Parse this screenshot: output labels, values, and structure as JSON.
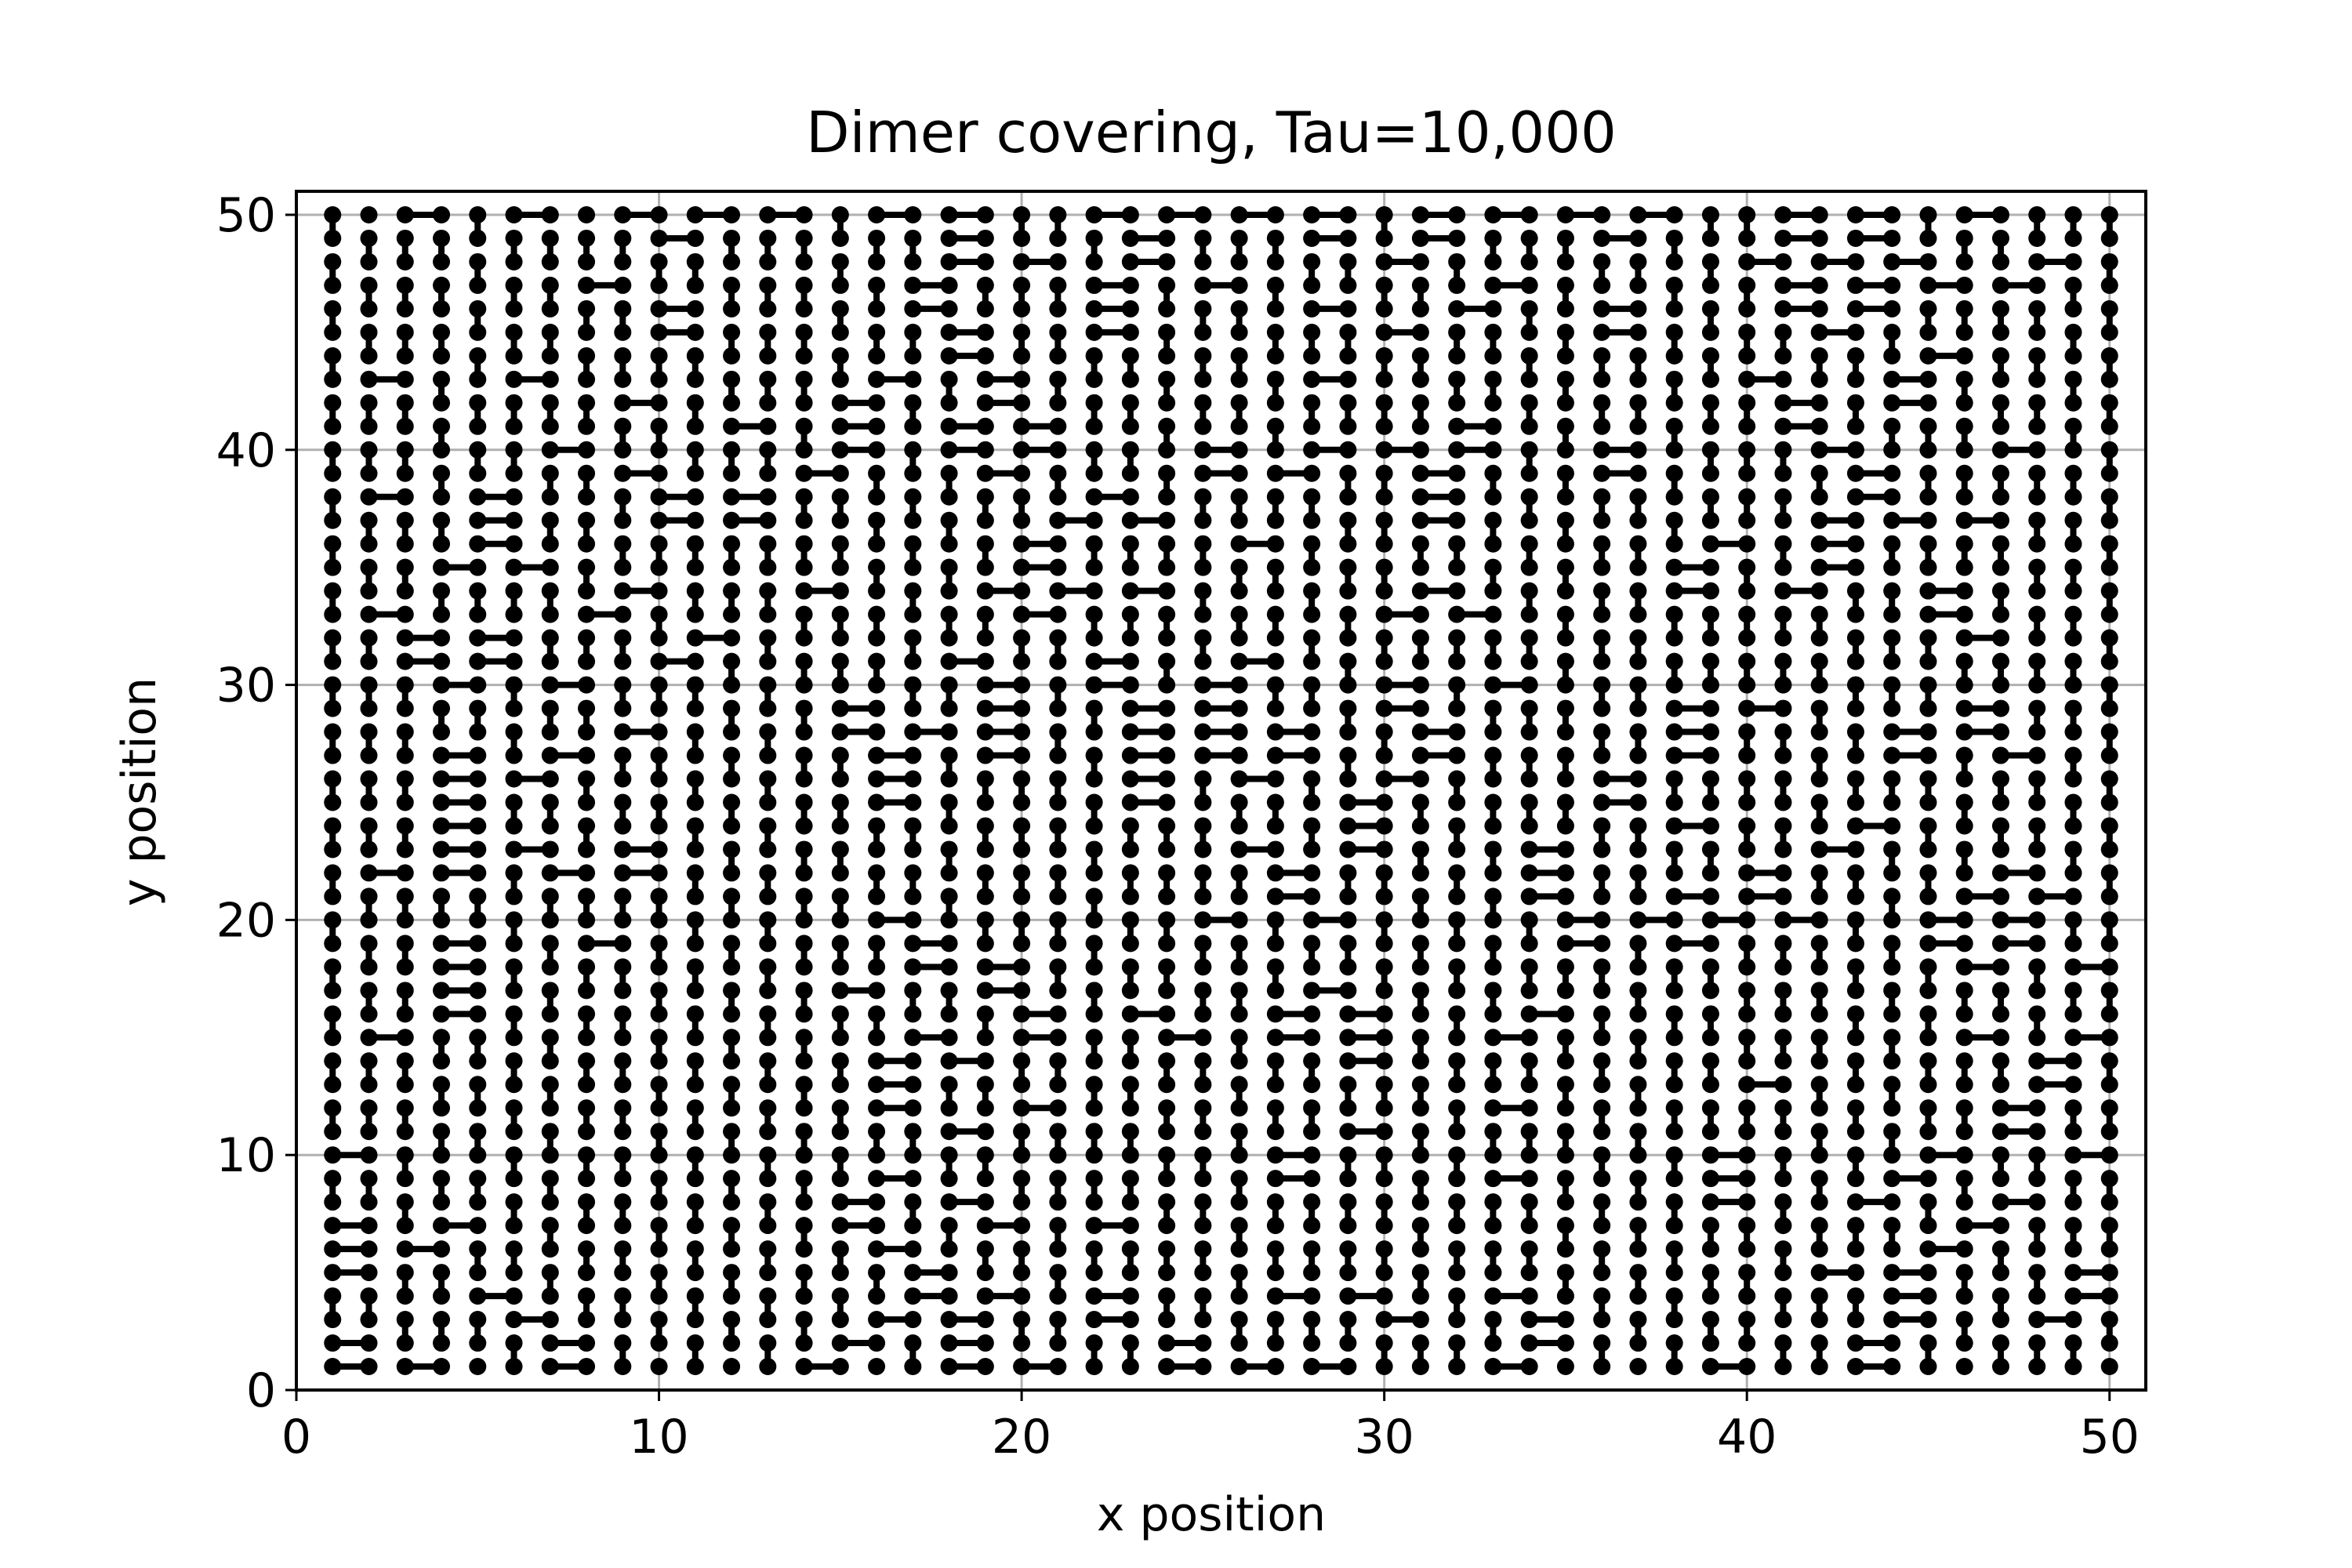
{
  "chart_data": {
    "type": "scatter",
    "title": "Dimer covering, Tau=10,000",
    "xlabel": "x position",
    "ylabel": "y position",
    "xlim": [
      0,
      51
    ],
    "ylim": [
      0,
      51
    ],
    "xticks": [
      0,
      10,
      20,
      30,
      40,
      50
    ],
    "yticks": [
      0,
      10,
      20,
      30,
      40,
      50
    ],
    "grid": true,
    "lattice": {
      "x": [
        1,
        50
      ],
      "y": [
        1,
        50
      ]
    },
    "sites_with_dimers": "every lattice site (integer x 1–50, y 1–50) is shown as a point; adjacent points are joined in pairs by dimer bonds",
    "colors": {
      "points": "#000000",
      "bonds": "#000000",
      "grid": "#b0b0b0",
      "axes": "#000000",
      "background": "#ffffff"
    },
    "bonds_sample": {
      "horizontal": [
        [
          [
            3,
            50
          ],
          [
            4,
            50
          ]
        ],
        [
          [
            6,
            50
          ],
          [
            7,
            50
          ]
        ],
        [
          [
            9,
            50
          ],
          [
            10,
            50
          ]
        ],
        [
          [
            11,
            50
          ],
          [
            12,
            50
          ]
        ],
        [
          [
            13,
            50
          ],
          [
            14,
            50
          ]
        ],
        [
          [
            16,
            50
          ],
          [
            17,
            50
          ]
        ],
        [
          [
            18,
            50
          ],
          [
            19,
            50
          ]
        ],
        [
          [
            22,
            50
          ],
          [
            23,
            50
          ]
        ],
        [
          [
            28,
            50
          ],
          [
            29,
            50
          ]
        ],
        [
          [
            31,
            50
          ],
          [
            32,
            50
          ]
        ],
        [
          [
            33,
            50
          ],
          [
            34,
            50
          ]
        ],
        [
          [
            35,
            50
          ],
          [
            36,
            50
          ]
        ],
        [
          [
            37,
            50
          ],
          [
            38,
            50
          ]
        ],
        [
          [
            41,
            49
          ],
          [
            42,
            49
          ]
        ],
        [
          [
            43,
            49
          ],
          [
            44,
            49
          ]
        ],
        [
          [
            46,
            50
          ],
          [
            47,
            50
          ]
        ]
      ],
      "vertical": [
        [
          [
            1,
            50
          ],
          [
            1,
            49
          ]
        ],
        [
          [
            2,
            49
          ],
          [
            2,
            48
          ]
        ],
        [
          [
            5,
            50
          ],
          [
            5,
            49
          ]
        ],
        [
          [
            8,
            49
          ],
          [
            8,
            48
          ]
        ],
        [
          [
            26,
            49
          ],
          [
            26,
            48
          ]
        ],
        [
          [
            40,
            50
          ],
          [
            40,
            49
          ]
        ],
        [
          [
            50,
            50
          ],
          [
            50,
            49
          ]
        ]
      ]
    }
  }
}
